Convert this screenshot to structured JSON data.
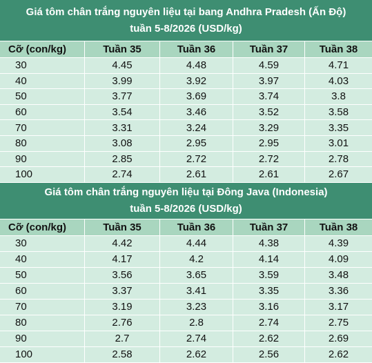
{
  "tables": [
    {
      "title_lines": [
        "Giá tôm chân trắng nguyên liệu tại bang Andhra Pradesh (Ấn Độ)",
        "tuần 5-8/2026 (USD/kg)"
      ],
      "columns": [
        "Cỡ (con/kg)",
        "Tuần 35",
        "Tuần 36",
        "Tuần 37",
        "Tuần 38"
      ],
      "rows": [
        [
          30,
          4.45,
          4.48,
          4.59,
          4.71
        ],
        [
          40,
          3.99,
          3.92,
          3.97,
          4.03
        ],
        [
          50,
          3.77,
          3.69,
          3.74,
          3.8
        ],
        [
          60,
          3.54,
          3.46,
          3.52,
          3.58
        ],
        [
          70,
          3.31,
          3.24,
          3.29,
          3.35
        ],
        [
          80,
          3.08,
          2.95,
          2.95,
          3.01
        ],
        [
          90,
          2.85,
          2.72,
          2.72,
          2.78
        ],
        [
          100,
          2.74,
          2.61,
          2.61,
          2.67
        ]
      ]
    },
    {
      "title_lines": [
        "Giá tôm chân trắng nguyên liệu tại Đông Java (Indonesia)",
        "tuần 5-8/2026 (USD/kg)"
      ],
      "columns": [
        "Cỡ (con/kg)",
        "Tuần 35",
        "Tuần 36",
        "Tuần 37",
        "Tuần 38"
      ],
      "rows": [
        [
          30,
          4.42,
          4.44,
          4.38,
          4.39
        ],
        [
          40,
          4.17,
          4.2,
          4.14,
          4.09
        ],
        [
          50,
          3.56,
          3.65,
          3.59,
          3.48
        ],
        [
          60,
          3.37,
          3.41,
          3.35,
          3.36
        ],
        [
          70,
          3.19,
          3.23,
          3.16,
          3.17
        ],
        [
          80,
          2.76,
          2.8,
          2.74,
          2.75
        ],
        [
          90,
          2.7,
          2.74,
          2.62,
          2.69
        ],
        [
          100,
          2.58,
          2.62,
          2.56,
          2.62
        ]
      ]
    }
  ]
}
